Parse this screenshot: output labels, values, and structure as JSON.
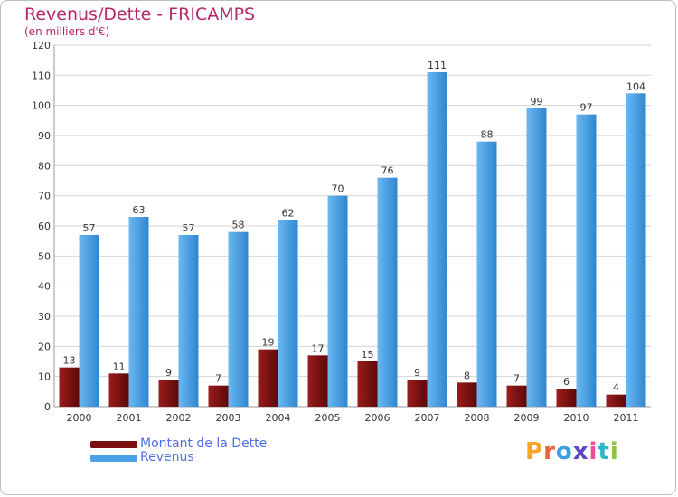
{
  "header": {
    "title": "Revenus/Dette - FRICAMPS",
    "subtitle": "(en milliers d'€)"
  },
  "colors": {
    "debt": "#7d0e0e",
    "revenue": "#4aa3e8",
    "axis_text": "#333333",
    "grid": "#d6d6d6",
    "title": "#b5286b",
    "legend_text": "#4f6fe6"
  },
  "legend": {
    "debt_label": "Montant de la Dette",
    "revenue_label": "Revenus"
  },
  "brand": {
    "text": "Proxiti",
    "letters": [
      {
        "char": "P",
        "color": "#f5a623"
      },
      {
        "char": "r",
        "color": "#e8663c"
      },
      {
        "char": "o",
        "color": "#3aa0e0"
      },
      {
        "char": "x",
        "color": "#5a44c8"
      },
      {
        "char": "i",
        "color": "#e84e9a"
      },
      {
        "char": "t",
        "color": "#2bb6c9"
      },
      {
        "char": "i",
        "color": "#8cc63f"
      }
    ]
  },
  "chart_data": {
    "type": "bar",
    "title": "Revenus/Dette - FRICAMPS",
    "subtitle": "(en milliers d'€)",
    "categories": [
      "2000",
      "2001",
      "2002",
      "2003",
      "2004",
      "2005",
      "2006",
      "2007",
      "2008",
      "2009",
      "2010",
      "2011"
    ],
    "series": [
      {
        "name": "Montant de la Dette",
        "values": [
          13,
          11,
          9,
          7,
          19,
          17,
          15,
          9,
          8,
          7,
          6,
          4
        ]
      },
      {
        "name": "Revenus",
        "values": [
          57,
          63,
          57,
          58,
          62,
          70,
          76,
          111,
          88,
          99,
          97,
          104
        ]
      }
    ],
    "ylim": [
      0,
      120
    ],
    "yticks": [
      0,
      10,
      20,
      30,
      40,
      50,
      60,
      70,
      80,
      90,
      100,
      110,
      120
    ],
    "grid": true,
    "legend_position": "bottom-left"
  }
}
